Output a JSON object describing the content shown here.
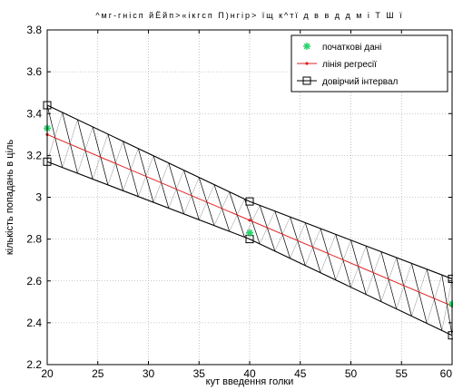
{
  "chart_data": {
    "type": "line",
    "title": "^мг-гнісп йЁйп>«ікгсп П)нгір˃ їщ к^тї д в в д д м і Т Ш ї",
    "xlabel": "кут введення голки",
    "ylabel": "кількість попадань в ціль",
    "xlim": [
      20,
      60
    ],
    "ylim": [
      2.2,
      3.8
    ],
    "x_ticks": [
      "20",
      "25",
      "30",
      "35",
      "40",
      "45",
      "50",
      "55",
      "60"
    ],
    "y_ticks": [
      "2.2",
      "2.4",
      "2.6",
      "2.8",
      "3",
      "3.2",
      "3.4",
      "3.6",
      "3.8"
    ],
    "grid": "on",
    "legend": {
      "placement": "top-right",
      "entries": [
        {
          "label": "початкові дані",
          "color": "#2bd36b",
          "marker": "asterisk"
        },
        {
          "label": "лінія регресії",
          "color": "#e02020",
          "marker": "dot"
        },
        {
          "label": "довірчий інтервал",
          "color": "#000000",
          "marker": "square"
        }
      ]
    },
    "series": [
      {
        "name": "початкові дані",
        "x": [
          20,
          40,
          60
        ],
        "y": [
          3.33,
          2.83,
          2.49
        ]
      },
      {
        "name": "лінія регресії",
        "x": [
          20,
          40,
          60
        ],
        "y": [
          3.3,
          2.89,
          2.48
        ]
      },
      {
        "name": "довірчий інтервал",
        "x": [
          20,
          40,
          60
        ],
        "upper": [
          3.44,
          2.98,
          2.61
        ],
        "lower": [
          3.17,
          2.8,
          2.34
        ]
      }
    ]
  }
}
